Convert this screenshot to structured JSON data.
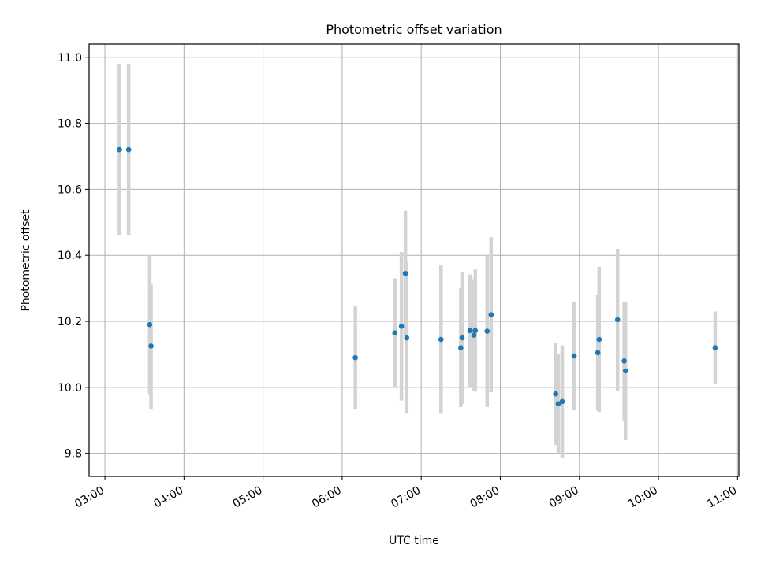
{
  "chart_data": {
    "type": "scatter",
    "title": "Photometric offset variation",
    "xlabel": "UTC time",
    "ylabel": "Photometric offset",
    "x_axis": {
      "kind": "time",
      "range": [
        "02:48",
        "11:01"
      ],
      "ticks": [
        "03:00",
        "04:00",
        "05:00",
        "06:00",
        "07:00",
        "08:00",
        "09:00",
        "10:00",
        "11:00"
      ]
    },
    "y_axis": {
      "range": [
        9.73,
        11.04
      ],
      "ticks": [
        "9.8",
        "10.0",
        "10.2",
        "10.4",
        "10.6",
        "10.8",
        "11.0"
      ]
    },
    "grid": true,
    "colors": {
      "points": "#1f77b4",
      "error_bars": "#d3d3d3",
      "grid": "#b0b0b0"
    },
    "points": [
      {
        "x": "03:11",
        "y": 10.72,
        "err": 0.26
      },
      {
        "x": "03:18",
        "y": 10.72,
        "err": 0.26
      },
      {
        "x": "03:34",
        "y": 10.19,
        "err": 0.21
      },
      {
        "x": "03:35",
        "y": 10.125,
        "err": 0.19
      },
      {
        "x": "06:10",
        "y": 10.09,
        "err": 0.155
      },
      {
        "x": "06:40",
        "y": 10.165,
        "err": 0.165
      },
      {
        "x": "06:45",
        "y": 10.185,
        "err": 0.225
      },
      {
        "x": "06:48",
        "y": 10.345,
        "err": 0.19
      },
      {
        "x": "06:49",
        "y": 10.15,
        "err": 0.23
      },
      {
        "x": "07:15",
        "y": 10.145,
        "err": 0.225
      },
      {
        "x": "07:30",
        "y": 10.12,
        "err": 0.18
      },
      {
        "x": "07:31",
        "y": 10.15,
        "err": 0.2
      },
      {
        "x": "07:37",
        "y": 10.172,
        "err": 0.17
      },
      {
        "x": "07:40",
        "y": 10.158,
        "err": 0.17
      },
      {
        "x": "07:41",
        "y": 10.172,
        "err": 0.185
      },
      {
        "x": "07:50",
        "y": 10.17,
        "err": 0.23
      },
      {
        "x": "07:53",
        "y": 10.22,
        "err": 0.235
      },
      {
        "x": "08:42",
        "y": 9.98,
        "err": 0.155
      },
      {
        "x": "08:44",
        "y": 9.95,
        "err": 0.15
      },
      {
        "x": "08:47",
        "y": 9.957,
        "err": 0.17
      },
      {
        "x": "08:56",
        "y": 10.095,
        "err": 0.165
      },
      {
        "x": "09:14",
        "y": 10.105,
        "err": 0.175
      },
      {
        "x": "09:15",
        "y": 10.145,
        "err": 0.22
      },
      {
        "x": "09:29",
        "y": 10.205,
        "err": 0.215
      },
      {
        "x": "09:34",
        "y": 10.08,
        "err": 0.18
      },
      {
        "x": "09:35",
        "y": 10.05,
        "err": 0.21
      },
      {
        "x": "10:43",
        "y": 10.12,
        "err": 0.11
      }
    ]
  }
}
